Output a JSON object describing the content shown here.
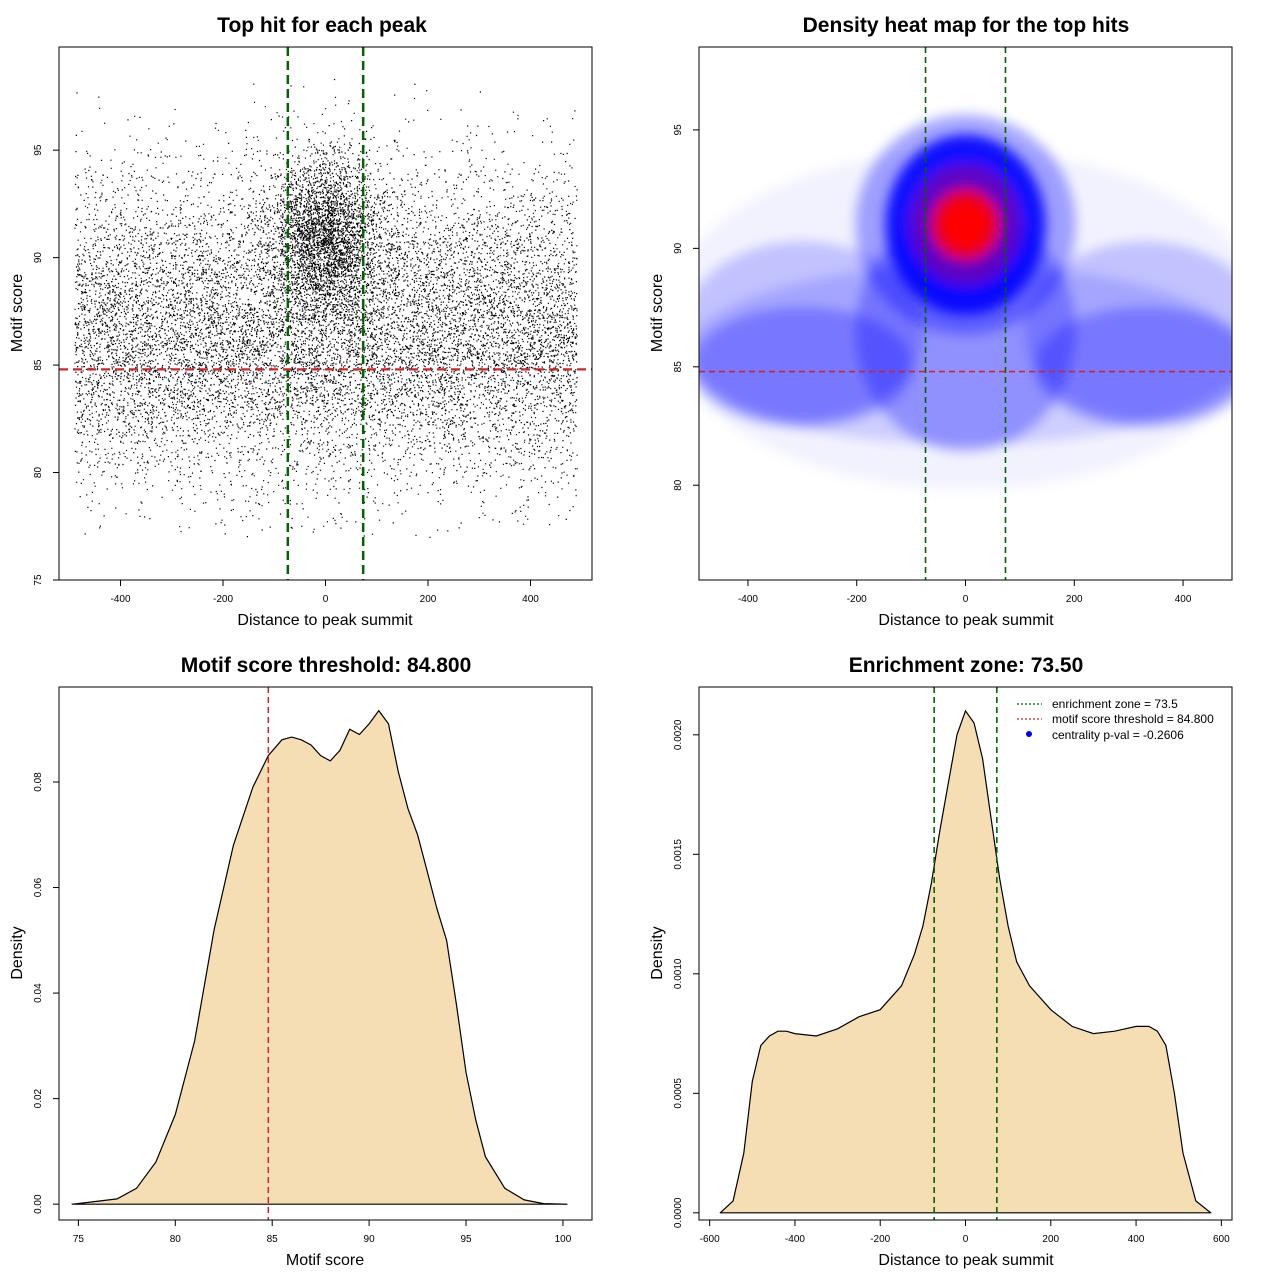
{
  "colors": {
    "scatter_points": "#000000",
    "enrichment_line": "#006400",
    "threshold_line": "#cd2626",
    "density_fill": "#f5deb3",
    "heat_low": "#ffffff",
    "heat_mid": "#0000ff",
    "heat_high": "#ff0000",
    "legend_marker": "#0000ff"
  },
  "chart_data": [
    {
      "type": "scatter",
      "title": "Top hit for each peak",
      "xlabel": "Distance to peak summit",
      "ylabel": "Motif score",
      "xlim": [
        -520,
        520
      ],
      "ylim": [
        75,
        99.8
      ],
      "xticks": [
        -400,
        -200,
        0,
        200,
        400
      ],
      "yticks": [
        75,
        80,
        85,
        90,
        95
      ],
      "x_range_of_points": [
        -490,
        490
      ],
      "y_range_of_points": [
        77,
        99
      ],
      "dense_cluster_center": {
        "x": 0,
        "y": 91
      },
      "vlines": [
        -73.5,
        73.5
      ],
      "hline": 84.8
    },
    {
      "type": "heatmap",
      "title": "Density heat map for the top hits",
      "xlabel": "Distance to peak summit",
      "ylabel": "Motif score",
      "xlim": [
        -490,
        490
      ],
      "ylim": [
        76,
        98.5
      ],
      "xticks": [
        -400,
        -200,
        0,
        200,
        400
      ],
      "yticks": [
        80,
        85,
        90,
        95
      ],
      "peak_density": {
        "x": 0,
        "y": 91
      },
      "vlines": [
        -73.5,
        73.5
      ],
      "hline": 84.8
    },
    {
      "type": "area",
      "title": "Motif score threshold: 84.800",
      "xlabel": "Motif score",
      "ylabel": "Density",
      "xlim": [
        74,
        101.5
      ],
      "ylim": [
        -0.003,
        0.098
      ],
      "xticks": [
        75,
        80,
        85,
        90,
        95,
        100
      ],
      "yticks": [
        0.0,
        0.02,
        0.04,
        0.06,
        0.08
      ],
      "ytick_labels": [
        "0.00",
        "0.02",
        "0.04",
        "0.06",
        "0.08"
      ],
      "x": [
        74.7,
        77,
        78,
        79,
        80,
        81,
        82,
        83,
        84,
        84.8,
        85.5,
        86,
        86.5,
        87,
        87.5,
        88,
        88.5,
        89,
        89.5,
        90,
        90.5,
        91,
        91.5,
        92,
        92.5,
        93,
        93.5,
        94,
        94.5,
        95,
        95.5,
        96,
        97,
        98,
        99,
        100.2
      ],
      "values": [
        0.0,
        0.001,
        0.003,
        0.008,
        0.017,
        0.031,
        0.052,
        0.068,
        0.079,
        0.085,
        0.088,
        0.0885,
        0.088,
        0.087,
        0.085,
        0.084,
        0.086,
        0.09,
        0.089,
        0.091,
        0.0935,
        0.091,
        0.082,
        0.075,
        0.07,
        0.063,
        0.056,
        0.05,
        0.038,
        0.025,
        0.016,
        0.009,
        0.003,
        0.0008,
        0.0001,
        0.0
      ],
      "vline": 84.8
    },
    {
      "type": "area",
      "title": "Enrichment zone: 73.50",
      "xlabel": "Distance to peak summit",
      "ylabel": "Density",
      "xlim": [
        -625,
        625
      ],
      "ylim": [
        -3e-05,
        0.0022
      ],
      "xticks": [
        -600,
        -400,
        -200,
        0,
        200,
        400,
        600
      ],
      "yticks": [
        0.0,
        0.0005,
        0.001,
        0.0015,
        0.002
      ],
      "ytick_labels": [
        "0.0000",
        "0.0005",
        "0.0010",
        "0.0015",
        "0.0020"
      ],
      "x": [
        -575,
        -545,
        -520,
        -500,
        -480,
        -460,
        -440,
        -420,
        -400,
        -350,
        -300,
        -250,
        -200,
        -150,
        -120,
        -100,
        -80,
        -60,
        -40,
        -20,
        0,
        20,
        40,
        60,
        80,
        100,
        120,
        150,
        200,
        250,
        300,
        350,
        400,
        430,
        450,
        470,
        490,
        510,
        540,
        575
      ],
      "values": [
        0.0,
        5e-05,
        0.00025,
        0.00055,
        0.0007,
        0.00074,
        0.00076,
        0.00076,
        0.00075,
        0.00074,
        0.00077,
        0.00082,
        0.00085,
        0.00095,
        0.00108,
        0.0012,
        0.00138,
        0.0016,
        0.0018,
        0.002,
        0.0021,
        0.00205,
        0.0019,
        0.00165,
        0.0014,
        0.0012,
        0.00105,
        0.00095,
        0.00085,
        0.00078,
        0.00075,
        0.00076,
        0.00078,
        0.00078,
        0.00076,
        0.0007,
        0.0005,
        0.00025,
        5e-05,
        0.0
      ],
      "vlines": [
        -73.5,
        73.5
      ],
      "legend": {
        "position": "top-right",
        "entries": [
          {
            "label": "enrichment zone = 73.5",
            "style": "dotted",
            "color": "#006400"
          },
          {
            "label": "motif score threshold = 84.800",
            "style": "dotted",
            "color": "#cd2626"
          },
          {
            "label": "centrality p-val = -0.2606",
            "style": "point",
            "color": "#0000ff"
          }
        ]
      }
    }
  ]
}
